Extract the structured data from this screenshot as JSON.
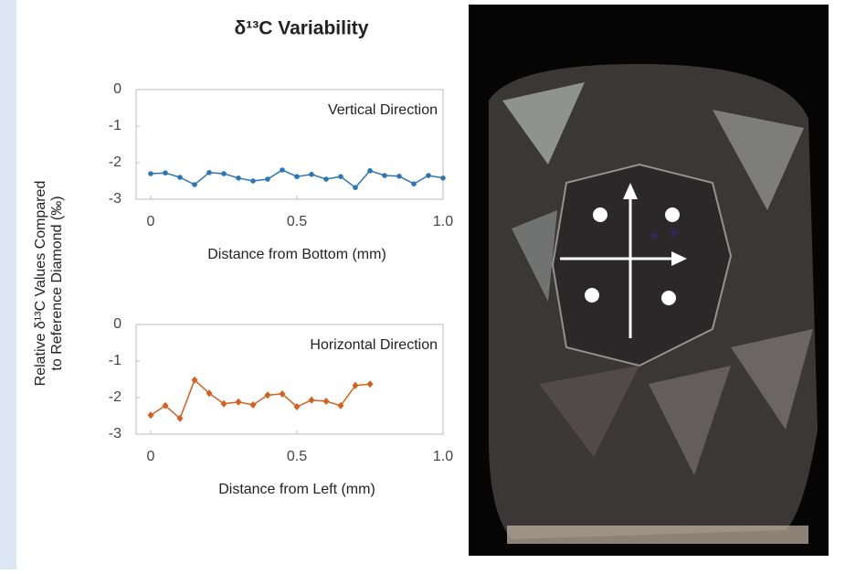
{
  "figure": {
    "title": "δ¹³C Variability",
    "ylabel": [
      "Relative δ¹³C Values Compared",
      "to Reference Diamond (‰)"
    ]
  },
  "chart_data": [
    {
      "type": "line",
      "annotation": "Vertical Direction",
      "xlabel": "Distance from Bottom (mm)",
      "x": [
        0,
        0.05,
        0.1,
        0.15,
        0.2,
        0.25,
        0.3,
        0.35,
        0.4,
        0.45,
        0.5,
        0.55,
        0.6,
        0.65,
        0.7,
        0.75,
        0.8,
        0.85,
        0.9,
        0.95,
        1.0
      ],
      "series": [
        {
          "color": "#2e75b6",
          "marker": "circle",
          "values": [
            -2.3,
            -2.28,
            -2.4,
            -2.6,
            -2.27,
            -2.3,
            -2.42,
            -2.5,
            -2.45,
            -2.2,
            -2.38,
            -2.32,
            -2.45,
            -2.38,
            -2.68,
            -2.22,
            -2.35,
            -2.37,
            -2.58,
            -2.35,
            -2.42
          ]
        }
      ],
      "xlim": [
        -0.05,
        1.0
      ],
      "xticks": [
        0,
        0.5,
        {
          "value": 1,
          "label": "1.0"
        }
      ],
      "ylim": [
        -3,
        0
      ],
      "yticks": [
        0,
        -1,
        -2,
        -3
      ]
    },
    {
      "type": "line",
      "annotation": "Horizontal Direction",
      "xlabel": "Distance from Left (mm)",
      "x": [
        0,
        0.05,
        0.1,
        0.15,
        0.2,
        0.25,
        0.3,
        0.35,
        0.4,
        0.45,
        0.5,
        0.55,
        0.6,
        0.65,
        0.7,
        0.75
      ],
      "series": [
        {
          "color": "#d4601e",
          "marker": "diamond",
          "values": [
            -2.48,
            -2.22,
            -2.57,
            -1.52,
            -1.88,
            -2.17,
            -2.12,
            -2.2,
            -1.93,
            -1.9,
            -2.25,
            -2.07,
            -2.1,
            -2.22,
            -1.67,
            -1.63
          ]
        }
      ],
      "xlim": [
        -0.05,
        1.0
      ],
      "xticks": [
        0,
        0.5,
        {
          "value": 1,
          "label": "1.0"
        }
      ],
      "ylim": [
        -3,
        0
      ],
      "yticks": [
        0,
        -1,
        -2,
        -3
      ]
    }
  ]
}
